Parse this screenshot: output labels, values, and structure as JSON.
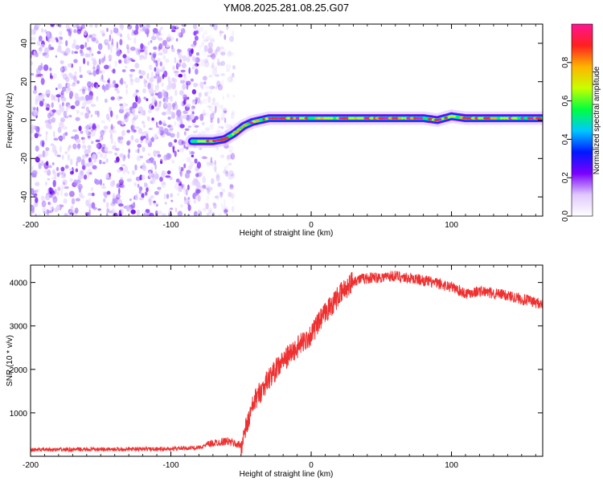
{
  "title": "YM08.2025.281.08.25.G07",
  "chart_data": [
    {
      "type": "heatmap",
      "xlabel": "Height of straight line (km)",
      "ylabel": "Frequency (Hz)",
      "xlim": [
        -200,
        165
      ],
      "ylim": [
        -50,
        50
      ],
      "xticks": [
        -200,
        -100,
        0,
        100
      ],
      "yticks": [
        -40,
        -20,
        0,
        20,
        40
      ],
      "ridge": {
        "x": [
          -85,
          -78,
          -70,
          -62,
          -55,
          -48,
          -42,
          -36,
          -30,
          -20,
          -10,
          0,
          20,
          40,
          60,
          80,
          90,
          100,
          110,
          120,
          140,
          165
        ],
        "frequency": [
          -11,
          -11,
          -11,
          -10,
          -7,
          -3,
          -1,
          0,
          1,
          1,
          1,
          1,
          1,
          1,
          1,
          1,
          0,
          2,
          1,
          1,
          1,
          1
        ]
      },
      "noise_region_x": [
        -200,
        -55
      ],
      "colorbar": {
        "label": "Normalized spectral amplitude",
        "ticks": [
          0.0,
          0.2,
          0.4,
          0.6,
          0.8
        ],
        "tick_labels": [
          "0.0",
          "0.2",
          "0.4",
          "0.6",
          "0.8"
        ],
        "range": [
          0,
          1
        ],
        "colormap": [
          "#ffffff",
          "#e0c8ff",
          "#7a00ff",
          "#0018ff",
          "#00c8ff",
          "#00ff40",
          "#c8ff00",
          "#ffb400",
          "#ff2020",
          "#ff1493"
        ]
      }
    },
    {
      "type": "line",
      "xlabel": "Height of straight line (km)",
      "ylabel": "SNR (10 * v/v)",
      "xlim": [
        -200,
        165
      ],
      "ylim": [
        0,
        4400
      ],
      "xticks": [
        -200,
        -100,
        0,
        100
      ],
      "yticks": [
        1000,
        2000,
        3000,
        4000
      ],
      "series": [
        {
          "name": "SNR",
          "color": "#ee3030",
          "x": [
            -200,
            -150,
            -100,
            -80,
            -70,
            -60,
            -55,
            -50,
            -45,
            -40,
            -30,
            -20,
            -10,
            0,
            10,
            20,
            30,
            40,
            60,
            80,
            100,
            110,
            120,
            140,
            165
          ],
          "y": [
            150,
            160,
            170,
            200,
            300,
            350,
            300,
            250,
            800,
            1300,
            1800,
            2200,
            2500,
            2800,
            3300,
            3700,
            4050,
            4100,
            4150,
            4050,
            3900,
            3750,
            3800,
            3700,
            3500
          ]
        }
      ]
    }
  ]
}
